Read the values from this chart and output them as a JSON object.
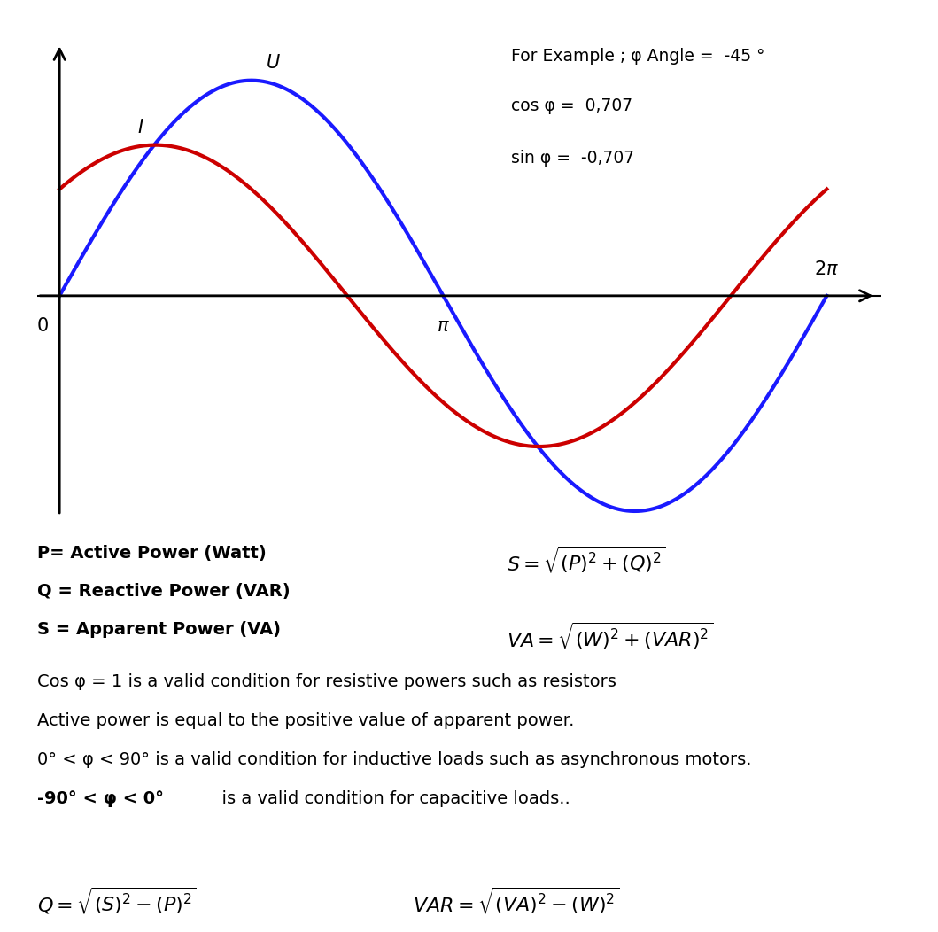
{
  "phi_deg": -45,
  "cos_phi": "0,707",
  "sin_phi": "-0,707",
  "voltage_color": "#1a1aff",
  "current_color": "#cc0000",
  "voltage_amplitude": 1.0,
  "current_amplitude": 0.7,
  "line_width": 3.0,
  "bg_color": "#ffffff",
  "text_color": "#000000",
  "def_lines": [
    "P= Active Power (Watt)",
    "Q = Reactive Power (VAR)",
    "S = Apparent Power (VA)"
  ],
  "condition_lines": [
    "Cos φ = 1 is a valid condition for resistive powers such as resistors",
    "Active power is equal to the positive value of apparent power.",
    "0° < φ < 90° is a valid condition for inductive loads such as asynchronous motors.",
    "-90° < φ < 0°  is a valid condition for capacitive loads.."
  ],
  "formula_S": "$S = \\sqrt{(P)^2 + (Q)^2}$",
  "formula_VA": "$VA = \\sqrt{(W)^2 + (VAR)^2}$",
  "formula_Q": "$Q = \\sqrt{(S)^2 - (P)^2}$",
  "formula_VAR": "$VAR = \\sqrt{(VA)^2 - (W)^2}$"
}
